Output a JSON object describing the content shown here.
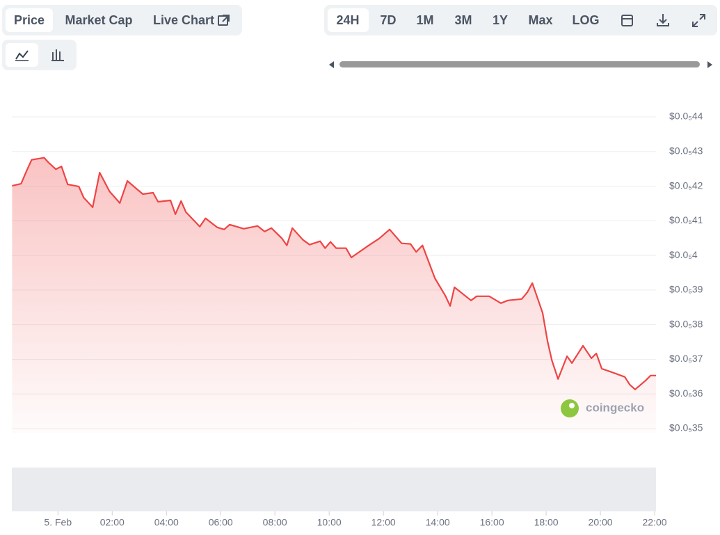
{
  "ui": {
    "tabs": [
      "Price",
      "Market Cap",
      "Live Chart"
    ],
    "ranges": [
      "24H",
      "7D",
      "1M",
      "3M",
      "1Y",
      "Max",
      "LOG"
    ],
    "watermark": "coingecko"
  },
  "chart_data": {
    "type": "line",
    "color": "#ef4444",
    "grid": true,
    "x": [
      -1.69,
      -1.36,
      -1.15,
      -0.97,
      -0.51,
      -0.33,
      -0.08,
      0.13,
      0.36,
      0.77,
      0.95,
      1.28,
      1.54,
      1.9,
      2.28,
      2.56,
      3.13,
      3.51,
      3.69,
      4.15,
      4.33,
      4.54,
      4.72,
      5.23,
      5.44,
      5.87,
      6.13,
      6.33,
      6.85,
      7.36,
      7.62,
      7.87,
      8.26,
      8.44,
      8.64,
      9.03,
      9.28,
      9.67,
      9.85,
      10.05,
      10.26,
      10.62,
      10.82,
      11.46,
      11.85,
      12.23,
      12.67,
      13.0,
      13.21,
      13.44,
      13.9,
      14.28,
      14.46,
      14.62,
      15.23,
      15.44,
      15.9,
      16.33,
      16.59,
      17.1,
      17.31,
      17.49,
      17.87,
      18.05,
      18.21,
      18.44,
      18.77,
      18.95,
      19.36,
      19.67,
      19.85,
      20.05,
      20.49,
      20.9,
      21.08,
      21.28,
      21.67,
      21.85,
      22.05
    ],
    "values": [
      4.201e-07,
      4.207e-07,
      4.245e-07,
      4.276e-07,
      4.282e-07,
      4.267e-07,
      4.249e-07,
      4.257e-07,
      4.205e-07,
      4.199e-07,
      4.167e-07,
      4.139e-07,
      4.239e-07,
      4.185e-07,
      4.151e-07,
      4.215e-07,
      4.177e-07,
      4.181e-07,
      4.155e-07,
      4.159e-07,
      4.119e-07,
      4.157e-07,
      4.125e-07,
      4.083e-07,
      4.107e-07,
      4.081e-07,
      4.075e-07,
      4.089e-07,
      4.077e-07,
      4.085e-07,
      4.069e-07,
      4.079e-07,
      4.049e-07,
      4.029e-07,
      4.079e-07,
      4.045e-07,
      4.031e-07,
      4.041e-07,
      4.021e-07,
      4.039e-07,
      4.021e-07,
      4.021e-07,
      3.994e-07,
      4.029e-07,
      4.049e-07,
      4.075e-07,
      4.035e-07,
      4.033e-07,
      4.01e-07,
      4.029e-07,
      3.934e-07,
      3.884e-07,
      3.854e-07,
      3.908e-07,
      3.87e-07,
      3.882e-07,
      3.882e-07,
      3.862e-07,
      3.87e-07,
      3.874e-07,
      3.894e-07,
      3.92e-07,
      3.834e-07,
      3.753e-07,
      3.697e-07,
      3.643e-07,
      3.709e-07,
      3.689e-07,
      3.739e-07,
      3.703e-07,
      3.717e-07,
      3.673e-07,
      3.661e-07,
      3.649e-07,
      3.627e-07,
      3.613e-07,
      3.639e-07,
      3.653e-07,
      3.653e-07
    ],
    "xlim": [
      -1.7,
      22.05
    ],
    "xticks": [
      {
        "value": 0,
        "label": "5. Feb"
      },
      {
        "value": 2,
        "label": "02:00"
      },
      {
        "value": 4,
        "label": "04:00"
      },
      {
        "value": 6,
        "label": "06:00"
      },
      {
        "value": 8,
        "label": "08:00"
      },
      {
        "value": 10,
        "label": "10:00"
      },
      {
        "value": 12,
        "label": "12:00"
      },
      {
        "value": 14,
        "label": "14:00"
      },
      {
        "value": 16,
        "label": "16:00"
      },
      {
        "value": 18,
        "label": "18:00"
      },
      {
        "value": 20,
        "label": "20:00"
      },
      {
        "value": 22,
        "label": "22:00"
      }
    ],
    "ylim": [
      3.5e-07,
      4.4e-07
    ],
    "yticks": [
      {
        "value": 4.4e-07,
        "label": "$0.0₅44"
      },
      {
        "value": 4.3e-07,
        "label": "$0.0₅43"
      },
      {
        "value": 4.2e-07,
        "label": "$0.0₅42"
      },
      {
        "value": 4.1e-07,
        "label": "$0.0₅41"
      },
      {
        "value": 4e-07,
        "label": "$0.0₅4"
      },
      {
        "value": 3.9e-07,
        "label": "$0.0₅39"
      },
      {
        "value": 3.8e-07,
        "label": "$0.0₅38"
      },
      {
        "value": 3.7e-07,
        "label": "$0.0₅37"
      },
      {
        "value": 3.6e-07,
        "label": "$0.0₅36"
      },
      {
        "value": 3.5e-07,
        "label": "$0.0₅35"
      }
    ]
  }
}
